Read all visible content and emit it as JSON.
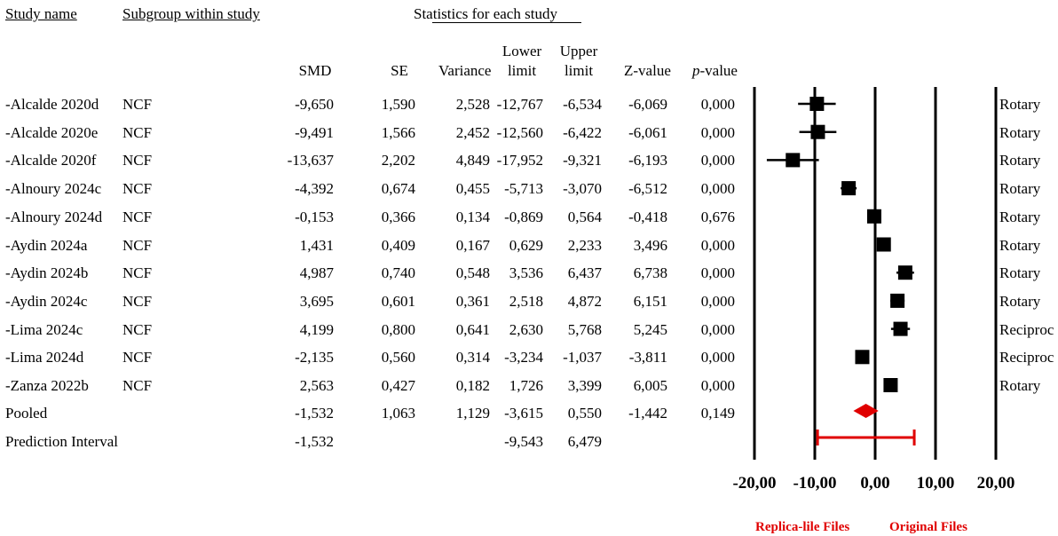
{
  "headers": {
    "study_name": "Study name",
    "subgroup": "Subgroup within study",
    "statistics": "Statistics for each study",
    "smd": "SMD",
    "se": "SE",
    "variance": "Variance",
    "lower_1": "Lower",
    "lower_2": "limit",
    "upper_1": "Upper",
    "upper_2": "limit",
    "zvalue": "Z-value",
    "p_prefix": "p",
    "p_suffix": "-value"
  },
  "rows": [
    {
      "name": "-Alcalde 2020d",
      "subgroup": "NCF",
      "smd": "-9,650",
      "se": "1,590",
      "variance": "2,528",
      "lower": "-12,767",
      "upper": "-6,534",
      "z": "-6,069",
      "p": "0,000",
      "group": "Rotary"
    },
    {
      "name": "-Alcalde 2020e",
      "subgroup": "NCF",
      "smd": "-9,491",
      "se": "1,566",
      "variance": "2,452",
      "lower": "-12,560",
      "upper": "-6,422",
      "z": "-6,061",
      "p": "0,000",
      "group": "Rotary"
    },
    {
      "name": "-Alcalde 2020f",
      "subgroup": "NCF",
      "smd": "-13,637",
      "se": "2,202",
      "variance": "4,849",
      "lower": "-17,952",
      "upper": "-9,321",
      "z": "-6,193",
      "p": "0,000",
      "group": "Rotary"
    },
    {
      "name": "-Alnoury 2024c",
      "subgroup": "NCF",
      "smd": "-4,392",
      "se": "0,674",
      "variance": "0,455",
      "lower": "-5,713",
      "upper": "-3,070",
      "z": "-6,512",
      "p": "0,000",
      "group": "Rotary"
    },
    {
      "name": "-Alnoury 2024d",
      "subgroup": "NCF",
      "smd": "-0,153",
      "se": "0,366",
      "variance": "0,134",
      "lower": "-0,869",
      "upper": "0,564",
      "z": "-0,418",
      "p": "0,676",
      "group": "Rotary"
    },
    {
      "name": "-Aydin 2024a",
      "subgroup": "NCF",
      "smd": "1,431",
      "se": "0,409",
      "variance": "0,167",
      "lower": "0,629",
      "upper": "2,233",
      "z": "3,496",
      "p": "0,000",
      "group": "Rotary"
    },
    {
      "name": "-Aydin 2024b",
      "subgroup": "NCF",
      "smd": "4,987",
      "se": "0,740",
      "variance": "0,548",
      "lower": "3,536",
      "upper": "6,437",
      "z": "6,738",
      "p": "0,000",
      "group": "Rotary"
    },
    {
      "name": "-Aydin 2024c",
      "subgroup": "NCF",
      "smd": "3,695",
      "se": "0,601",
      "variance": "0,361",
      "lower": "2,518",
      "upper": "4,872",
      "z": "6,151",
      "p": "0,000",
      "group": "Rotary"
    },
    {
      "name": "-Lima 2024c",
      "subgroup": "NCF",
      "smd": "4,199",
      "se": "0,800",
      "variance": "0,641",
      "lower": "2,630",
      "upper": "5,768",
      "z": "5,245",
      "p": "0,000",
      "group": "Reciproc"
    },
    {
      "name": "-Lima 2024d",
      "subgroup": "NCF",
      "smd": "-2,135",
      "se": "0,560",
      "variance": "0,314",
      "lower": "-3,234",
      "upper": "-1,037",
      "z": "-3,811",
      "p": "0,000",
      "group": "Reciproc"
    },
    {
      "name": "-Zanza 2022b",
      "subgroup": "NCF",
      "smd": "2,563",
      "se": "0,427",
      "variance": "0,182",
      "lower": "1,726",
      "upper": "3,399",
      "z": "6,005",
      "p": "0,000",
      "group": "Rotary"
    }
  ],
  "pooled": {
    "name": "Pooled",
    "smd": "-1,532",
    "se": "1,063",
    "variance": "1,129",
    "lower": "-3,615",
    "upper": "0,550",
    "z": "-1,442",
    "p": "0,149"
  },
  "prediction": {
    "name": "Prediction Interval",
    "smd": "-1,532",
    "lower": "-9,543",
    "upper": "6,479"
  },
  "footer": {
    "left": "Replica-lile Files",
    "right": "Original Files"
  },
  "colors": {
    "pooled": "#e00000",
    "marker": "#000000"
  },
  "chart_data": {
    "type": "forest",
    "xlim": [
      -20,
      20
    ],
    "tick_values": [
      -20,
      -10,
      0,
      10,
      20
    ],
    "tick_labels": [
      "-20,00",
      "-10,00",
      "0,00",
      "10,00",
      "20,00"
    ],
    "studies": [
      {
        "est": -9.65,
        "lo": -12.767,
        "hi": -6.534
      },
      {
        "est": -9.491,
        "lo": -12.56,
        "hi": -6.422
      },
      {
        "est": -13.637,
        "lo": -17.952,
        "hi": -9.321
      },
      {
        "est": -4.392,
        "lo": -5.713,
        "hi": -3.07
      },
      {
        "est": -0.153,
        "lo": -0.869,
        "hi": 0.564
      },
      {
        "est": 1.431,
        "lo": 0.629,
        "hi": 2.233
      },
      {
        "est": 4.987,
        "lo": 3.536,
        "hi": 6.437
      },
      {
        "est": 3.695,
        "lo": 2.518,
        "hi": 4.872
      },
      {
        "est": 4.199,
        "lo": 2.63,
        "hi": 5.768
      },
      {
        "est": -2.135,
        "lo": -3.234,
        "hi": -1.037
      },
      {
        "est": 2.563,
        "lo": 1.726,
        "hi": 3.399
      }
    ],
    "pooled": {
      "est": -1.532,
      "lo": -3.615,
      "hi": 0.55
    },
    "prediction": {
      "lo": -9.543,
      "hi": 6.479
    }
  }
}
